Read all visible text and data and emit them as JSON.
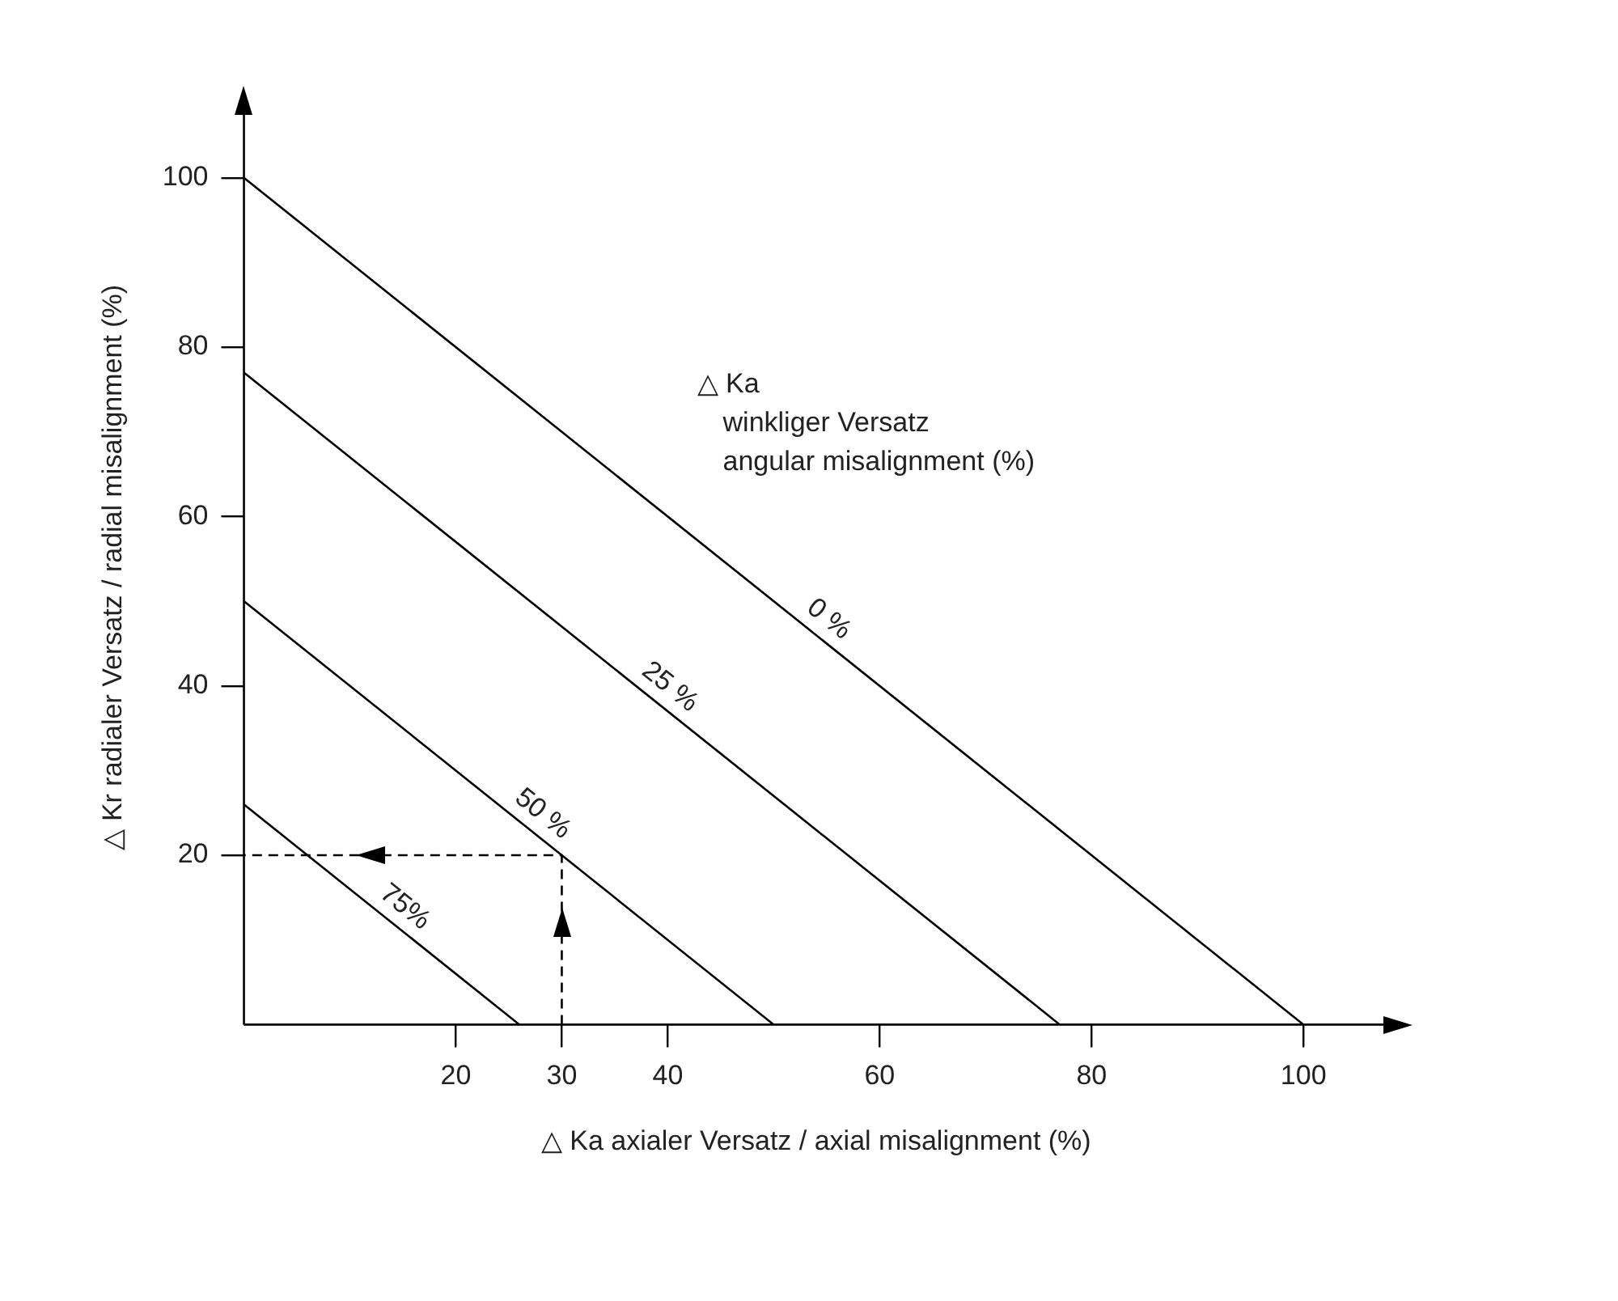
{
  "chart_data": {
    "type": "line",
    "xlabel": "△ Ka axialer Versatz / axial misalignment (%)",
    "ylabel": "△ Kr radialer Versatz / radial misalignment (%)",
    "xlim": [
      0,
      108
    ],
    "ylim": [
      0,
      108
    ],
    "xticks": [
      20,
      30,
      40,
      60,
      80,
      100
    ],
    "yticks": [
      20,
      40,
      60,
      80,
      100
    ],
    "marker": "none",
    "series": [
      {
        "color": "#000000",
        "x": [
          0,
          100
        ],
        "values": [
          100,
          0
        ]
      },
      {
        "color": "#000000",
        "x": [
          0,
          77
        ],
        "values": [
          77,
          0
        ]
      },
      {
        "color": "#000000",
        "x": [
          0,
          50
        ],
        "values": [
          50,
          0
        ]
      },
      {
        "color": "#000000",
        "x": [
          0,
          26
        ],
        "values": [
          26,
          0
        ]
      },
      {
        "color": "#000000",
        "x": [
          30,
          30,
          0
        ],
        "values": [
          0,
          20,
          20
        ],
        "line_style": "dashed"
      }
    ],
    "annotations": [
      {
        "text": "0 %",
        "x": 54,
        "y": 46
      },
      {
        "text": "25 %",
        "x": 39,
        "y": 38
      },
      {
        "text": "50 %",
        "x": 27,
        "y": 23
      },
      {
        "text": "75%",
        "x": 14,
        "y": 12
      },
      "△ Ka",
      "winkliger Versatz",
      "angular misalignment (%)"
    ]
  }
}
